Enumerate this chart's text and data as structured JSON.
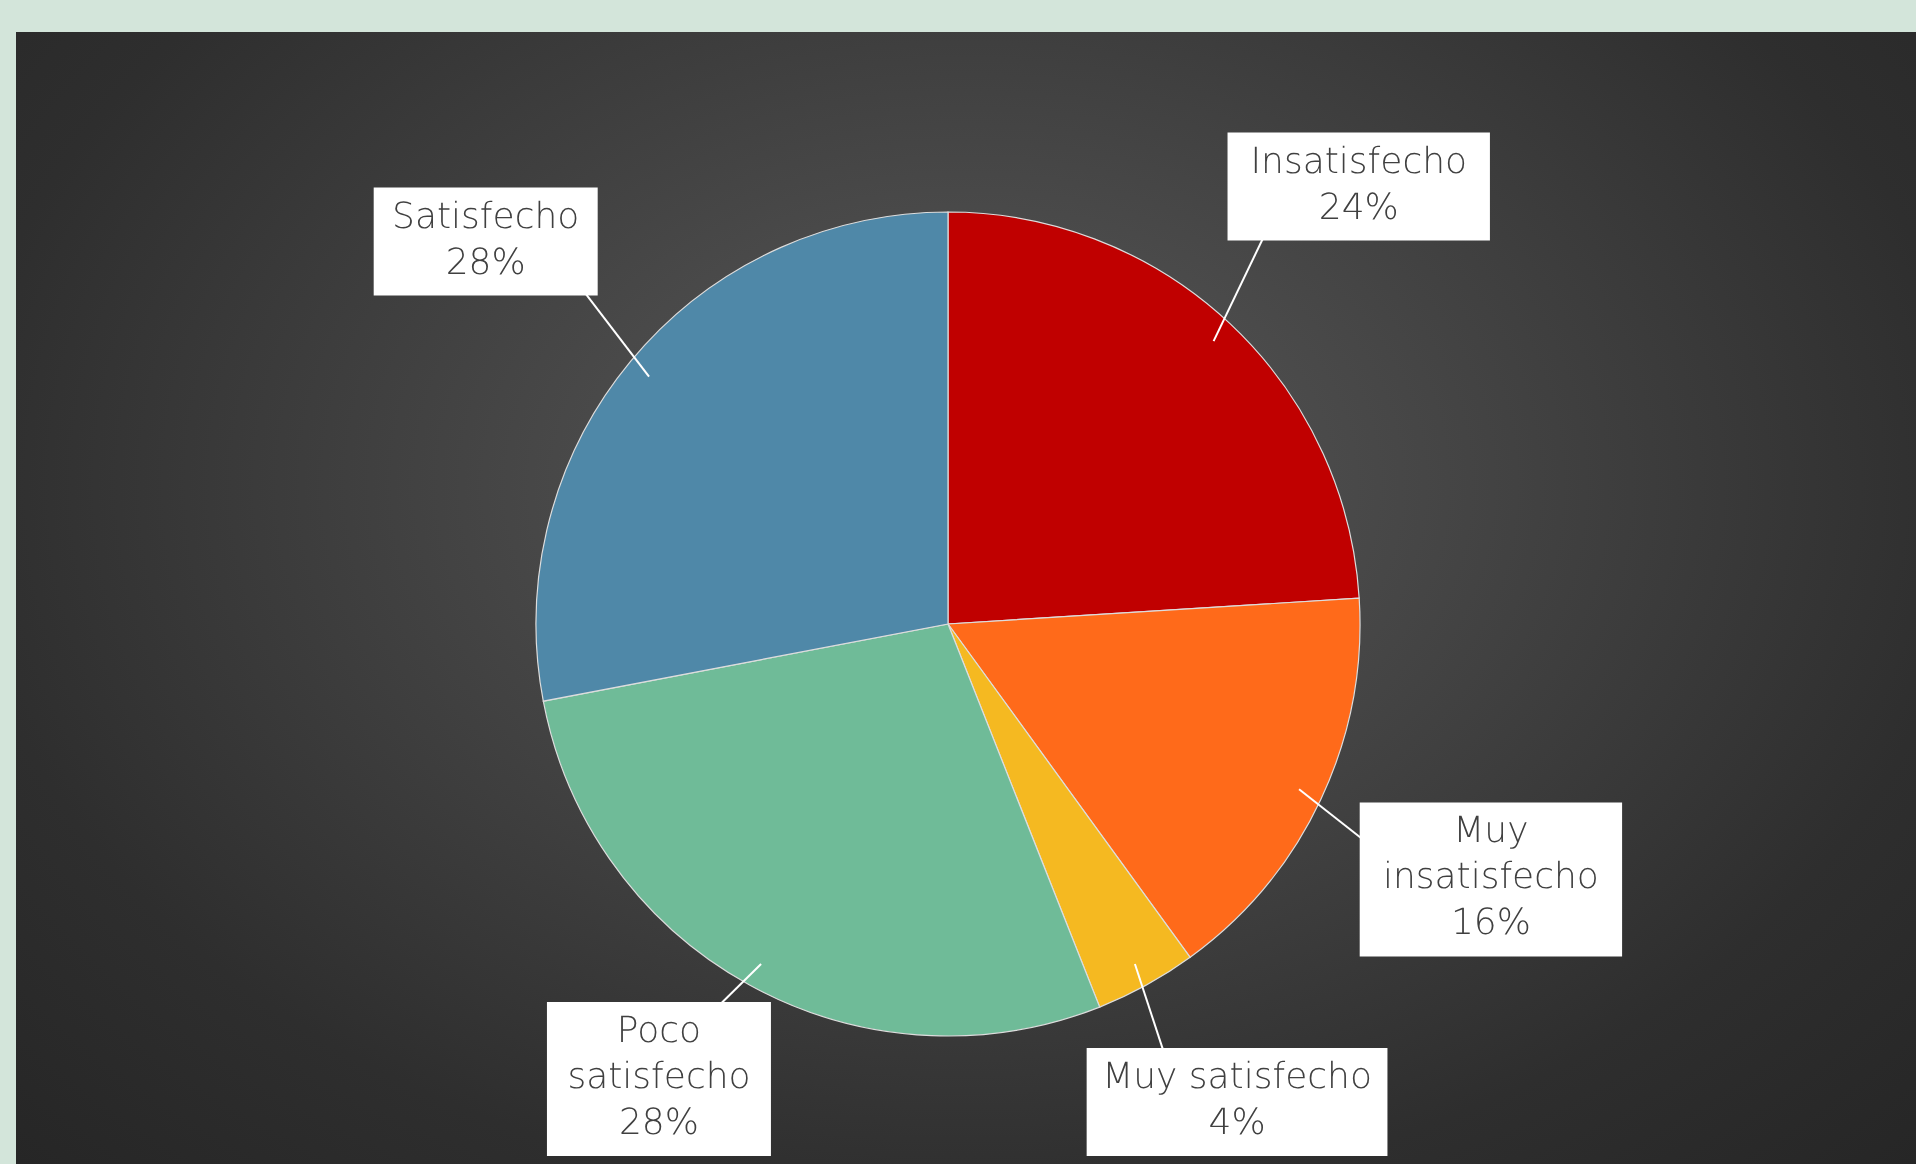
{
  "chart_data": {
    "type": "pie",
    "categories": [
      "Insatisfecho",
      "Muy insatisfecho",
      "Muy satisfecho",
      "Poco satisfecho",
      "Satisfecho"
    ],
    "values": [
      24,
      16,
      4,
      28,
      28
    ],
    "colors": [
      "#c00000",
      "#ff6a1a",
      "#f5b921",
      "#6fbb98",
      "#4f88a8"
    ],
    "value_labels": [
      "24%",
      "16%",
      "4%",
      "28%",
      "28%"
    ]
  }
}
